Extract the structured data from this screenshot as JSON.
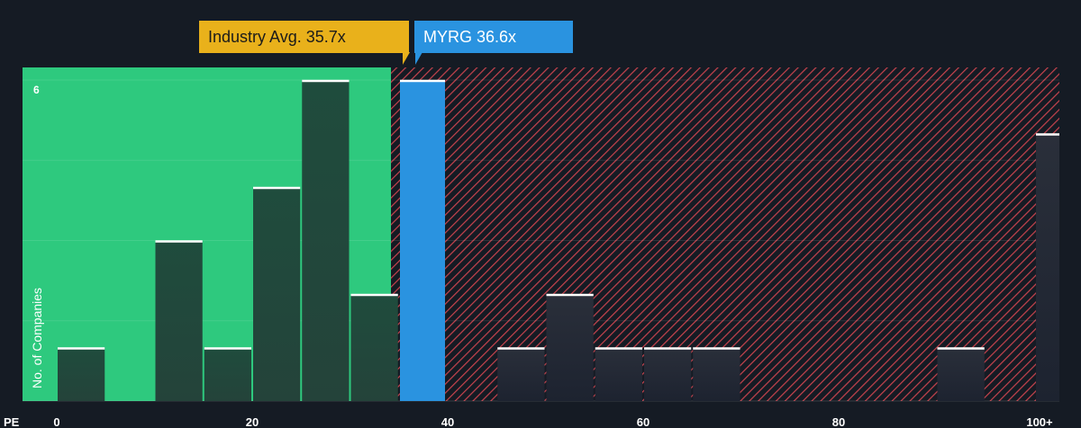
{
  "chart_data": {
    "type": "bar",
    "xlabel": "PE",
    "ylabel": "No. of Companies",
    "xlim": [
      0,
      100
    ],
    "ylim": [
      0,
      6
    ],
    "x_ticks": [
      "0",
      "20",
      "40",
      "60",
      "80",
      "100+"
    ],
    "y_max_label": "6",
    "bins": [
      {
        "start": 0,
        "end": 5,
        "count": 1
      },
      {
        "start": 10,
        "end": 15,
        "count": 3
      },
      {
        "start": 15,
        "end": 20,
        "count": 1
      },
      {
        "start": 20,
        "end": 25,
        "count": 4
      },
      {
        "start": 25,
        "end": 30,
        "count": 6
      },
      {
        "start": 30,
        "end": 35,
        "count": 2
      },
      {
        "start": 45,
        "end": 50,
        "count": 1
      },
      {
        "start": 50,
        "end": 55,
        "count": 2
      },
      {
        "start": 55,
        "end": 60,
        "count": 1
      },
      {
        "start": 60,
        "end": 65,
        "count": 1
      },
      {
        "start": 65,
        "end": 70,
        "count": 1
      },
      {
        "start": 90,
        "end": 95,
        "count": 1
      },
      {
        "start": 100,
        "end": 105,
        "count": 5
      }
    ],
    "company_bin": {
      "start": 35,
      "end": 40,
      "count": 6
    },
    "industry_avg": 35.7,
    "company_pe": 36.6,
    "callouts": {
      "industry": "Industry Avg. 35.7x",
      "company": "MYRG 36.6x"
    },
    "colors": {
      "background": "#151b24",
      "below_avg_region": "#2ec97e",
      "below_avg_bar": "#1e4d3c",
      "above_avg_hatch": "#c7434d",
      "company_bar": "#2a93e0",
      "industry_callout": "#e9b11b",
      "bar_cap": "#ffffff"
    }
  }
}
